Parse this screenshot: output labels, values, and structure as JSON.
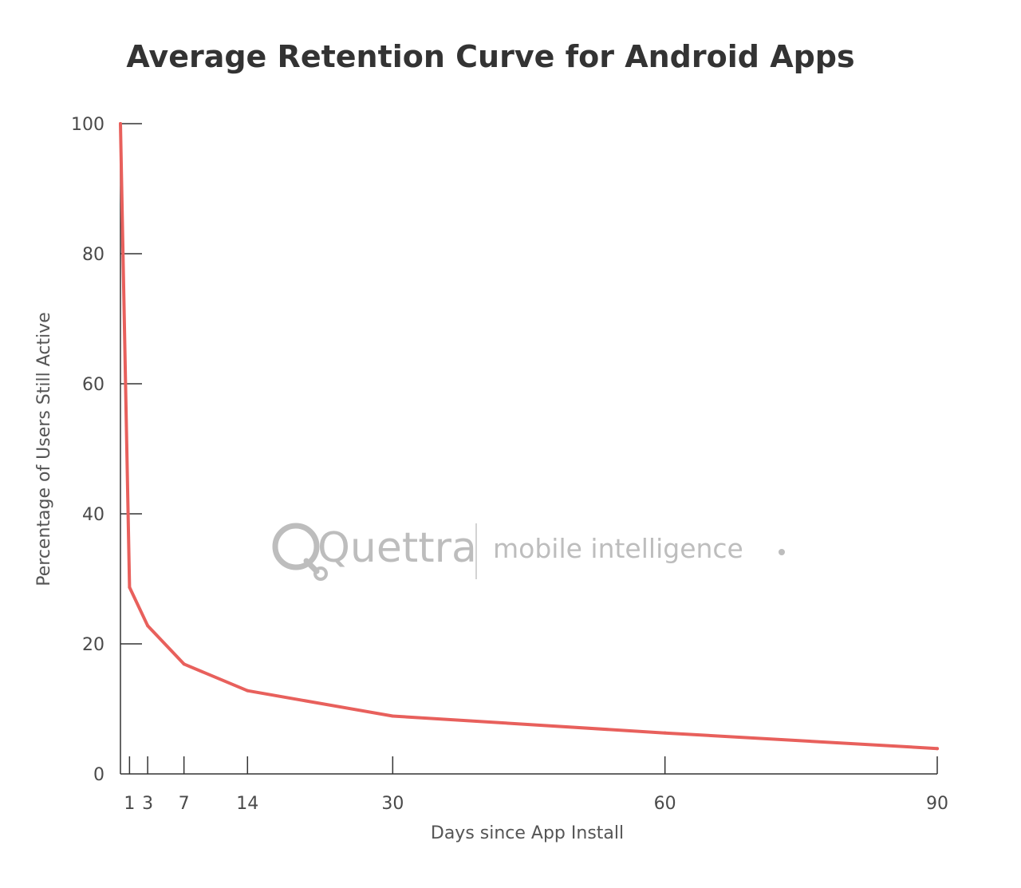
{
  "chart_data": {
    "type": "line",
    "title": "Average Retention Curve for Android Apps",
    "xlabel": "Days since App Install",
    "ylabel": "Percentage of Users Still Active",
    "xlim": [
      0,
      90
    ],
    "ylim": [
      0,
      100
    ],
    "x_ticks": [
      1,
      3,
      7,
      14,
      30,
      60,
      90
    ],
    "y_ticks": [
      0,
      20,
      40,
      60,
      80,
      100
    ],
    "grid": false,
    "series": [
      {
        "color": "#e8605c",
        "points": [
          {
            "x": 0,
            "y": 100
          },
          {
            "x": 1,
            "y": 28.7
          },
          {
            "x": 3,
            "y": 22.8
          },
          {
            "x": 7,
            "y": 16.9
          },
          {
            "x": 14,
            "y": 12.8
          },
          {
            "x": 30,
            "y": 8.9
          },
          {
            "x": 60,
            "y": 6.3
          },
          {
            "x": 90,
            "y": 3.9
          }
        ]
      }
    ]
  },
  "watermark": {
    "brand": "Quettra",
    "tagline": "mobile intelligence",
    "icon": "magnifier-q-icon",
    "color": "#bdbdbd"
  },
  "colors": {
    "line": "#e8605c",
    "axis": "#333333",
    "text": "#4a4a4a"
  }
}
